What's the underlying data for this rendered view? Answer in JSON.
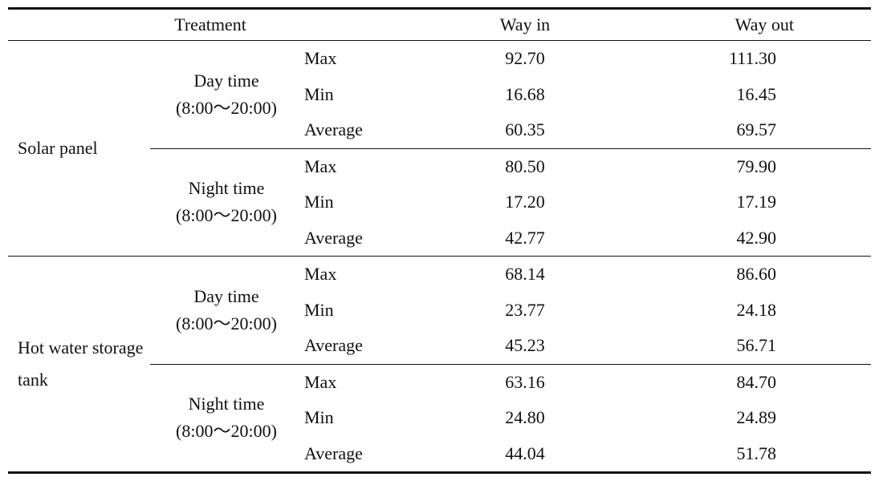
{
  "table": {
    "header": [
      "Treatment",
      "Way in",
      "Way out"
    ],
    "groups": [
      {
        "name": "Solar panel",
        "subgroups": [
          {
            "period": "Day time",
            "hours": "(8:00～20:00)",
            "rows": [
              {
                "stat": "Max",
                "way_in": "92.70",
                "way_out": "111.30"
              },
              {
                "stat": "Min",
                "way_in": "16.68",
                "way_out": "16.45"
              },
              {
                "stat": "Average",
                "way_in": "60.35",
                "way_out": "69.57"
              }
            ]
          },
          {
            "period": "Night time",
            "hours": "(8:00～20:00)",
            "rows": [
              {
                "stat": "Max",
                "way_in": "80.50",
                "way_out": "79.90"
              },
              {
                "stat": "Min",
                "way_in": "17.20",
                "way_out": "17.19"
              },
              {
                "stat": "Average",
                "way_in": "42.77",
                "way_out": "42.90"
              }
            ]
          }
        ]
      },
      {
        "name": "Hot water storage tank",
        "subgroups": [
          {
            "period": "Day time",
            "hours": "(8:00～20:00)",
            "rows": [
              {
                "stat": "Max",
                "way_in": "68.14",
                "way_out": "86.60"
              },
              {
                "stat": "Min",
                "way_in": "23.77",
                "way_out": "24.18"
              },
              {
                "stat": "Average",
                "way_in": "45.23",
                "way_out": "56.71"
              }
            ]
          },
          {
            "period": "Night time",
            "hours": "(8:00～20:00)",
            "rows": [
              {
                "stat": "Max",
                "way_in": "63.16",
                "way_out": "84.70"
              },
              {
                "stat": "Min",
                "way_in": "24.80",
                "way_out": "24.89"
              },
              {
                "stat": "Average",
                "way_in": "44.04",
                "way_out": "51.78"
              }
            ]
          }
        ]
      }
    ]
  }
}
